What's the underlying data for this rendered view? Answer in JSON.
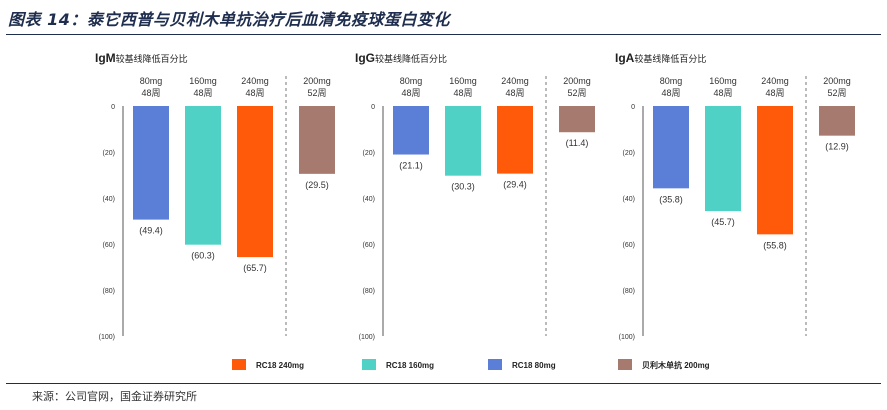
{
  "title": "图表 14：泰它西普与贝利木单抗治疗后血清免疫球蛋白变化",
  "source": "来源：公司官网，国金证券研究所",
  "chart_data": [
    {
      "type": "bar",
      "title_bold": "IgM",
      "title_rest": "较基线降低百分比",
      "categories": [
        [
          "80mg",
          "48周"
        ],
        [
          "160mg",
          "48周"
        ],
        [
          "240mg",
          "48周"
        ],
        [
          "200mg",
          "52周"
        ]
      ],
      "values": [
        -49.4,
        -60.3,
        -65.7,
        -29.5
      ],
      "value_labels": [
        "(49.4)",
        "(60.3)",
        "(65.7)",
        "(29.5)"
      ],
      "ylim": [
        -100,
        0
      ],
      "yticks": [
        "0",
        "(20)",
        "(40)",
        "(60)",
        "(80)",
        "(100)"
      ],
      "colors": [
        "#5b7fd6",
        "#4fd1c5",
        "#ff5a0a",
        "#a67a6e"
      ]
    },
    {
      "type": "bar",
      "title_bold": "IgG",
      "title_rest": "较基线降低百分比",
      "categories": [
        [
          "80mg",
          "48周"
        ],
        [
          "160mg",
          "48周"
        ],
        [
          "240mg",
          "48周"
        ],
        [
          "200mg",
          "52周"
        ]
      ],
      "values": [
        -21.1,
        -30.3,
        -29.4,
        -11.4
      ],
      "value_labels": [
        "(21.1)",
        "(30.3)",
        "(29.4)",
        "(11.4)"
      ],
      "ylim": [
        -100,
        0
      ],
      "yticks": [
        "0",
        "(20)",
        "(40)",
        "(60)",
        "(80)",
        "(100)"
      ],
      "colors": [
        "#5b7fd6",
        "#4fd1c5",
        "#ff5a0a",
        "#a67a6e"
      ]
    },
    {
      "type": "bar",
      "title_bold": "IgA",
      "title_rest": "较基线降低百分比",
      "categories": [
        [
          "80mg",
          "48周"
        ],
        [
          "160mg",
          "48周"
        ],
        [
          "240mg",
          "48周"
        ],
        [
          "200mg",
          "52周"
        ]
      ],
      "values": [
        -35.8,
        -45.7,
        -55.8,
        -12.9
      ],
      "value_labels": [
        "(35.8)",
        "(45.7)",
        "(55.8)",
        "(12.9)"
      ],
      "ylim": [
        -100,
        0
      ],
      "yticks": [
        "0",
        "(20)",
        "(40)",
        "(60)",
        "(80)",
        "(100)"
      ],
      "colors": [
        "#5b7fd6",
        "#4fd1c5",
        "#ff5a0a",
        "#a67a6e"
      ]
    }
  ],
  "legend": [
    {
      "label": "RC18 240mg",
      "color": "#ff5a0a"
    },
    {
      "label": "RC18 160mg",
      "color": "#4fd1c5"
    },
    {
      "label": "RC18 80mg",
      "color": "#5b7fd6"
    },
    {
      "label": "贝利木单抗 200mg",
      "color": "#a67a6e"
    }
  ]
}
